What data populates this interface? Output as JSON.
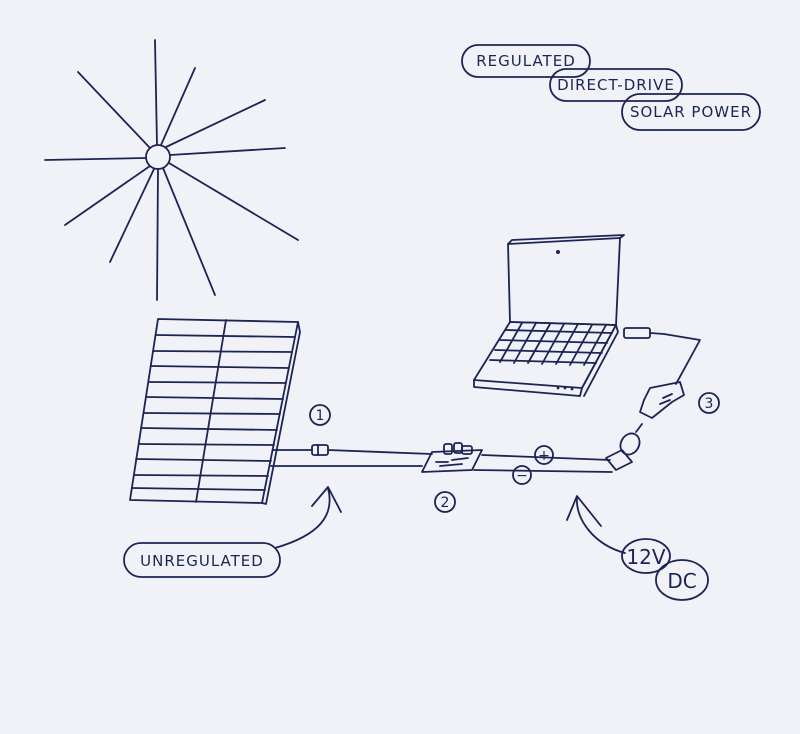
{
  "title": {
    "line1": "REGULATED",
    "line2": "DIRECT-DRIVE",
    "line3": "SOLAR POWER"
  },
  "labels": {
    "unregulated": "UNREGULATED",
    "voltage": "12V",
    "current_type": "DC",
    "plus": "+",
    "minus": "−"
  },
  "markers": {
    "one": "1",
    "two": "2",
    "three": "3"
  },
  "colors": {
    "ink": "#1c2454",
    "paper": "#f0f2f8"
  }
}
